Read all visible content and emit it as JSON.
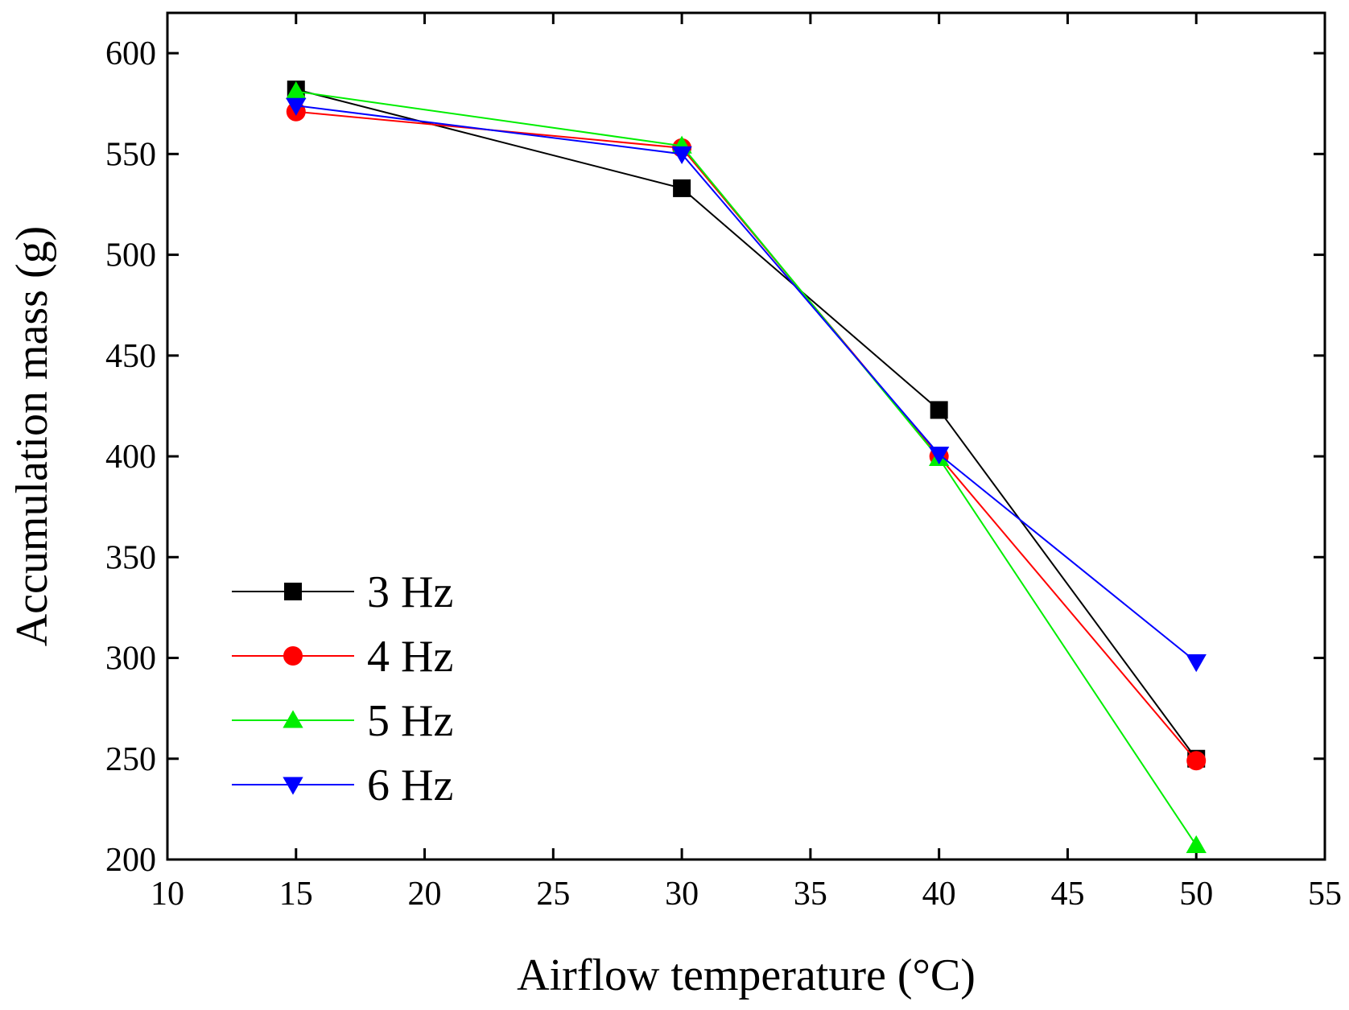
{
  "chart_data": {
    "type": "line",
    "title": "",
    "xlabel": "Airflow temperature (°C)",
    "ylabel": "Accumulation mass (g)",
    "xlim": [
      10,
      55
    ],
    "ylim": [
      200,
      620
    ],
    "xticks": [
      10,
      15,
      20,
      25,
      30,
      35,
      40,
      45,
      50,
      55
    ],
    "yticks": [
      200,
      250,
      300,
      350,
      400,
      450,
      500,
      550,
      600
    ],
    "x": [
      15,
      30,
      40,
      50
    ],
    "legend_position": "bottom-left",
    "series": [
      {
        "name": "3 Hz",
        "color": "#000000",
        "marker": "square",
        "values": [
          582,
          533,
          423,
          250
        ]
      },
      {
        "name": "4 Hz",
        "color": "#ff0000",
        "marker": "circle",
        "values": [
          571,
          553,
          400,
          249
        ]
      },
      {
        "name": "5 Hz",
        "color": "#00ee00",
        "marker": "triangle-up",
        "values": [
          581,
          554,
          399,
          207
        ]
      },
      {
        "name": "6 Hz",
        "color": "#0000ff",
        "marker": "triangle-down",
        "values": [
          574,
          550,
          401,
          298
        ]
      }
    ]
  }
}
